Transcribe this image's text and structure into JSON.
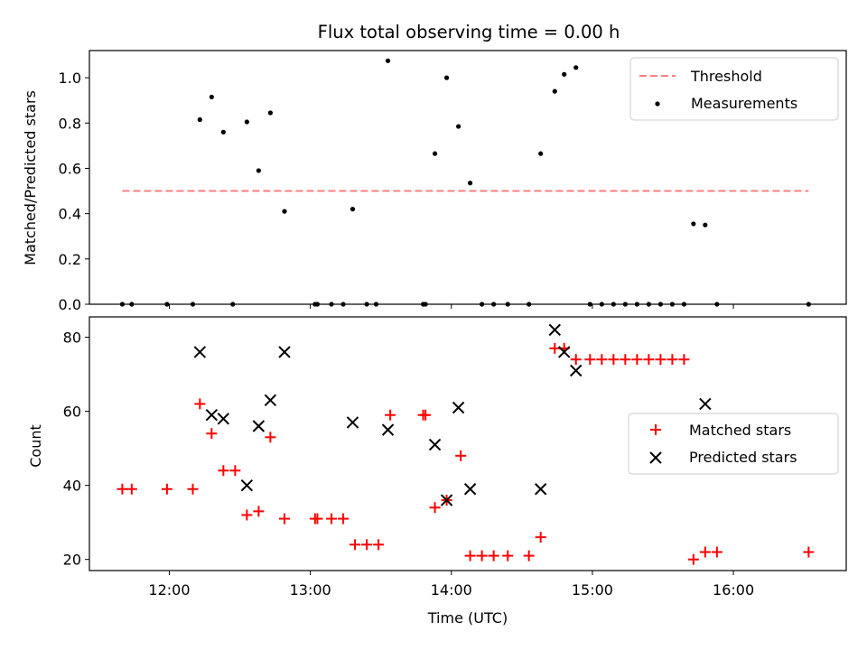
{
  "chart_data": [
    {
      "type": "scatter",
      "title": "Flux total observing time = 0.00 h",
      "xlabel": "",
      "ylabel": "Matched/Predicted stars",
      "xlim": [
        "11:26",
        "16:48"
      ],
      "ylim": [
        0,
        1.12
      ],
      "yticks": [
        "0.0",
        "0.2",
        "0.4",
        "0.6",
        "0.8",
        "1.0"
      ],
      "legend_position": "top-right",
      "series": [
        {
          "name": "Threshold",
          "style": "dashed-line",
          "color": "#ff7f7f",
          "x": [
            "11:40",
            "16:32"
          ],
          "y": [
            0.5,
            0.5
          ]
        },
        {
          "name": "Measurements",
          "style": "dot",
          "color": "#000000",
          "points": [
            [
              "11:40",
              0
            ],
            [
              "11:44",
              0
            ],
            [
              "11:59",
              0
            ],
            [
              "12:10",
              0
            ],
            [
              "12:13",
              0.815
            ],
            [
              "12:18",
              0.915
            ],
            [
              "12:23",
              0.76
            ],
            [
              "12:27",
              0
            ],
            [
              "12:33",
              0.805
            ],
            [
              "12:38",
              0.59
            ],
            [
              "12:43",
              0.845
            ],
            [
              "12:49",
              0.41
            ],
            [
              "13:02",
              0
            ],
            [
              "13:03",
              0
            ],
            [
              "13:09",
              0
            ],
            [
              "13:14",
              0
            ],
            [
              "13:18",
              0.42
            ],
            [
              "13:24",
              0
            ],
            [
              "13:28",
              0
            ],
            [
              "13:33",
              1.075
            ],
            [
              "13:48",
              0
            ],
            [
              "13:49",
              0
            ],
            [
              "13:53",
              0.665
            ],
            [
              "13:58",
              1.0
            ],
            [
              "14:03",
              0.785
            ],
            [
              "14:08",
              0.535
            ],
            [
              "14:13",
              0
            ],
            [
              "14:18",
              0
            ],
            [
              "14:24",
              0
            ],
            [
              "14:33",
              0
            ],
            [
              "14:38",
              0.665
            ],
            [
              "14:44",
              0.94
            ],
            [
              "14:48",
              1.015
            ],
            [
              "14:53",
              1.045
            ],
            [
              "14:59",
              0
            ],
            [
              "15:04",
              0
            ],
            [
              "15:09",
              0
            ],
            [
              "15:14",
              0
            ],
            [
              "15:19",
              0
            ],
            [
              "15:24",
              0
            ],
            [
              "15:29",
              0
            ],
            [
              "15:34",
              0
            ],
            [
              "15:39",
              0
            ],
            [
              "15:43",
              0.355
            ],
            [
              "15:48",
              0.35
            ],
            [
              "15:53",
              0
            ],
            [
              "16:32",
              0
            ]
          ]
        }
      ]
    },
    {
      "type": "scatter",
      "title": "",
      "xlabel": "Time (UTC)",
      "ylabel": "Count",
      "xlim": [
        "11:26",
        "16:48"
      ],
      "ylim": [
        17,
        85.5
      ],
      "yticks": [
        "20",
        "40",
        "60",
        "80"
      ],
      "xticks": [
        "12:00",
        "13:00",
        "14:00",
        "15:00",
        "16:00"
      ],
      "legend_position": "center-right",
      "series": [
        {
          "name": "Matched stars",
          "style": "plus",
          "color": "#ff0000",
          "points": [
            [
              "11:40",
              39
            ],
            [
              "11:44",
              39
            ],
            [
              "11:59",
              39
            ],
            [
              "12:10",
              39
            ],
            [
              "12:13",
              62
            ],
            [
              "12:18",
              54
            ],
            [
              "12:23",
              44
            ],
            [
              "12:28",
              44
            ],
            [
              "12:33",
              32
            ],
            [
              "12:38",
              33
            ],
            [
              "12:43",
              53
            ],
            [
              "12:49",
              31
            ],
            [
              "13:02",
              31
            ],
            [
              "13:03",
              31
            ],
            [
              "13:09",
              31
            ],
            [
              "13:14",
              31
            ],
            [
              "13:19",
              24
            ],
            [
              "13:24",
              24
            ],
            [
              "13:29",
              24
            ],
            [
              "13:34",
              59
            ],
            [
              "13:48",
              59
            ],
            [
              "13:49",
              59
            ],
            [
              "13:53",
              34
            ],
            [
              "13:58",
              36
            ],
            [
              "14:04",
              48
            ],
            [
              "14:08",
              21
            ],
            [
              "14:13",
              21
            ],
            [
              "14:18",
              21
            ],
            [
              "14:24",
              21
            ],
            [
              "14:33",
              21
            ],
            [
              "14:38",
              26
            ],
            [
              "14:44",
              77
            ],
            [
              "14:48",
              77
            ],
            [
              "14:53",
              74
            ],
            [
              "14:59",
              74
            ],
            [
              "15:04",
              74
            ],
            [
              "15:09",
              74
            ],
            [
              "15:14",
              74
            ],
            [
              "15:19",
              74
            ],
            [
              "15:24",
              74
            ],
            [
              "15:29",
              74
            ],
            [
              "15:34",
              74
            ],
            [
              "15:39",
              74
            ],
            [
              "15:43",
              20
            ],
            [
              "15:48",
              22
            ],
            [
              "15:53",
              22
            ],
            [
              "16:32",
              22
            ]
          ]
        },
        {
          "name": "Predicted stars",
          "style": "x",
          "color": "#000000",
          "points": [
            [
              "12:13",
              76
            ],
            [
              "12:18",
              59
            ],
            [
              "12:23",
              58
            ],
            [
              "12:33",
              40
            ],
            [
              "12:38",
              56
            ],
            [
              "12:43",
              63
            ],
            [
              "12:49",
              76
            ],
            [
              "13:18",
              57
            ],
            [
              "13:33",
              55
            ],
            [
              "13:53",
              51
            ],
            [
              "13:58",
              36
            ],
            [
              "14:03",
              61
            ],
            [
              "14:08",
              39
            ],
            [
              "14:38",
              39
            ],
            [
              "14:44",
              82
            ],
            [
              "14:48",
              76
            ],
            [
              "14:53",
              71
            ],
            [
              "15:48",
              62
            ]
          ]
        }
      ]
    }
  ]
}
